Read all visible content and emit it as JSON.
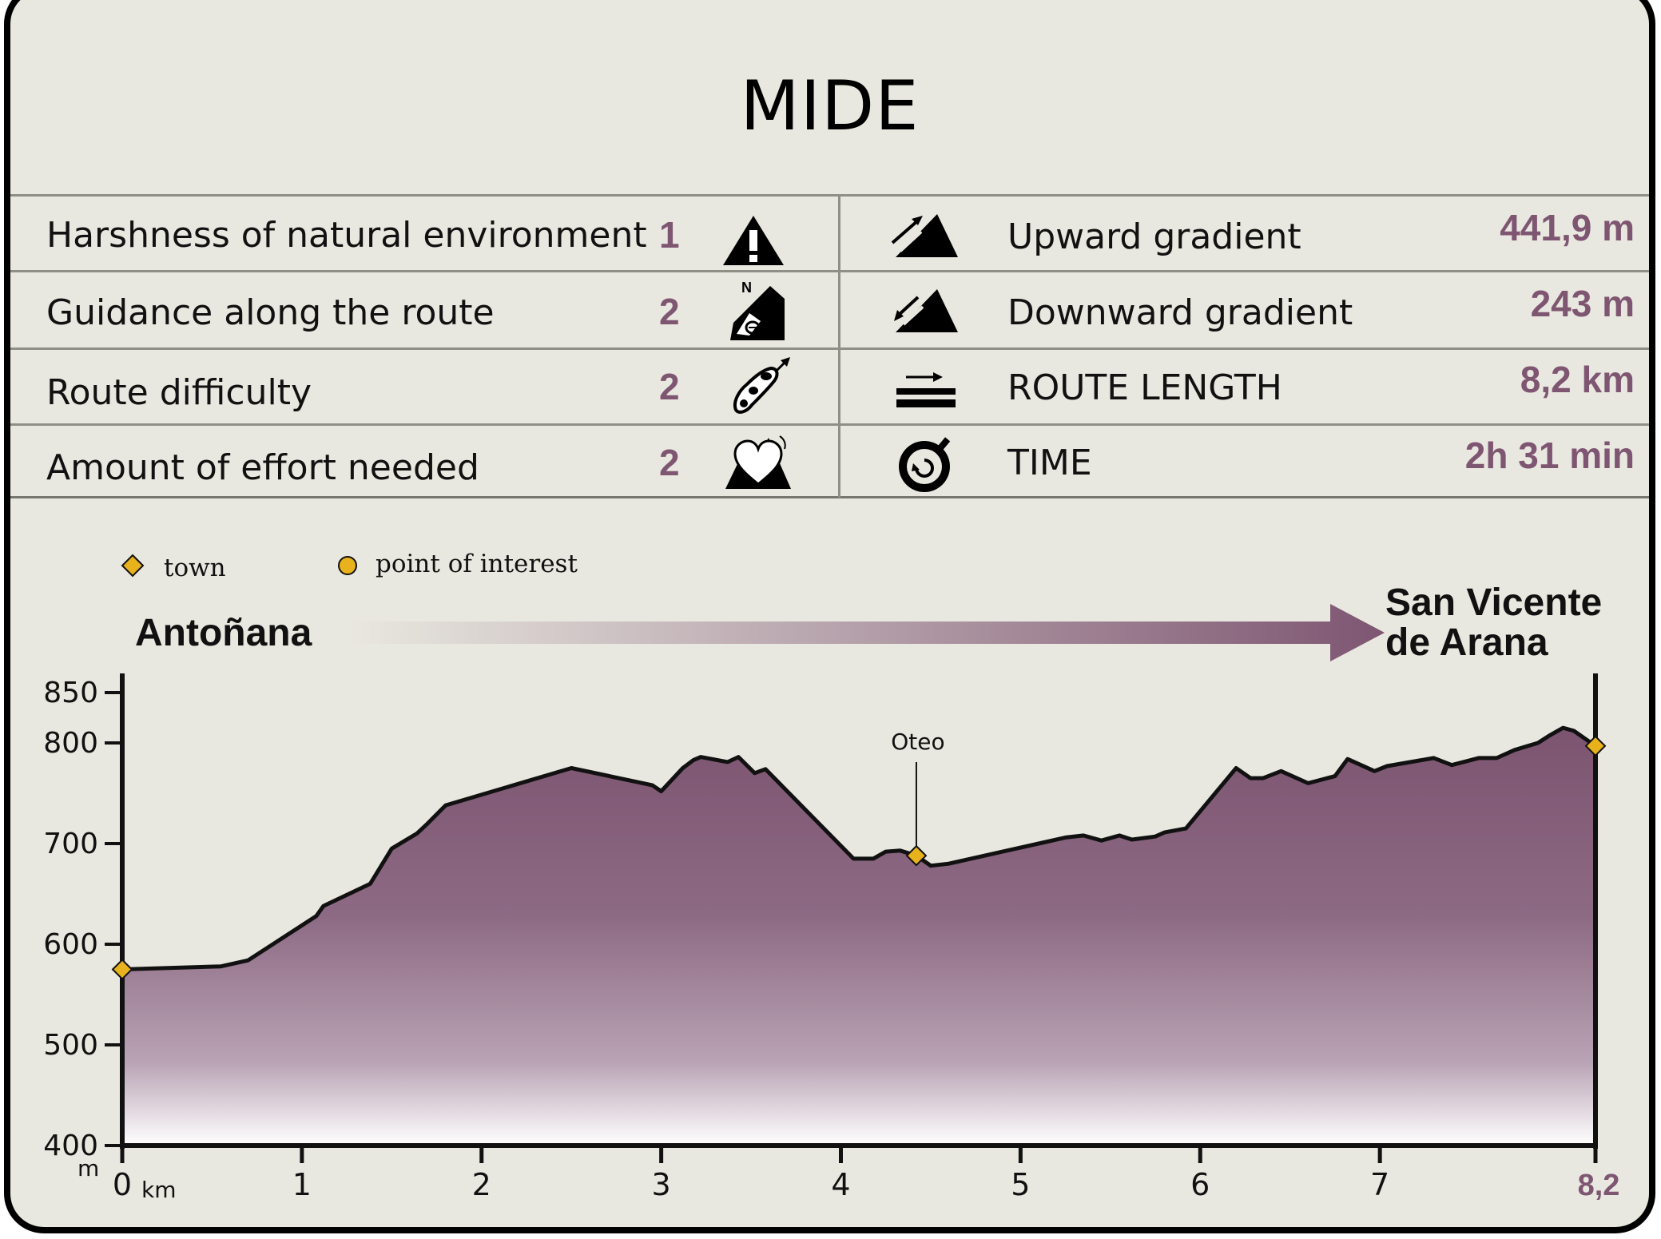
{
  "title": "MIDE",
  "mide_left": [
    {
      "label": "Harshness of natural environment",
      "value": "1",
      "icon": "warning-icon"
    },
    {
      "label": "Guidance along the route",
      "value": "2",
      "icon": "orientation-icon"
    },
    {
      "label": "Route difficulty",
      "value": "2",
      "icon": "footprint-icon"
    },
    {
      "label": "Amount of effort needed",
      "value": "2",
      "icon": "heart-mountain-icon"
    }
  ],
  "mide_right": [
    {
      "label": "Upward gradient",
      "value": "441,9 m",
      "icon": "uphill-icon"
    },
    {
      "label": "Downward gradient",
      "value": "243 m",
      "icon": "downhill-icon"
    },
    {
      "label": "ROUTE LENGTH",
      "value": "8,2 km",
      "icon": "distance-icon"
    },
    {
      "label": "TIME",
      "value": "2h 31 min",
      "icon": "stopwatch-icon"
    }
  ],
  "legend": {
    "town": "town",
    "poi": "point of interest"
  },
  "colors": {
    "accent": "#7e5672",
    "profile_top": "#7c5470",
    "profile_bottom": "#ffffff",
    "background": "#e9e8e0",
    "marker": "#e8b21c"
  },
  "chart_data": {
    "type": "area",
    "title": "",
    "start_place": "Antoñana",
    "end_place_line1": "San Vicente",
    "end_place_line2": "de Arana",
    "xlabel": "km",
    "ylabel": "m",
    "xlim": [
      0,
      8.2
    ],
    "ylim": [
      400,
      850
    ],
    "x_ticks": [
      {
        "value": 0,
        "label": "0"
      },
      {
        "value": 1,
        "label": "1"
      },
      {
        "value": 2,
        "label": "2"
      },
      {
        "value": 3,
        "label": "3"
      },
      {
        "value": 4,
        "label": "4"
      },
      {
        "value": 5,
        "label": "5"
      },
      {
        "value": 6,
        "label": "6"
      },
      {
        "value": 7,
        "label": "7"
      },
      {
        "value": 8.2,
        "label": "8,2"
      }
    ],
    "y_ticks": [
      400,
      500,
      600,
      700,
      800,
      850
    ],
    "profile": [
      [
        0,
        575
      ],
      [
        0.55,
        578
      ],
      [
        0.7,
        584
      ],
      [
        1.08,
        628
      ],
      [
        1.12,
        638
      ],
      [
        1.38,
        660
      ],
      [
        1.5,
        695
      ],
      [
        1.64,
        710
      ],
      [
        1.7,
        720
      ],
      [
        1.8,
        738
      ],
      [
        2.5,
        775
      ],
      [
        2.95,
        758
      ],
      [
        3.0,
        752
      ],
      [
        3.12,
        775
      ],
      [
        3.18,
        783
      ],
      [
        3.22,
        786
      ],
      [
        3.37,
        781
      ],
      [
        3.43,
        786
      ],
      [
        3.52,
        770
      ],
      [
        3.58,
        774
      ],
      [
        4.07,
        685
      ],
      [
        4.18,
        685
      ],
      [
        4.25,
        692
      ],
      [
        4.33,
        693
      ],
      [
        4.42,
        688
      ],
      [
        4.5,
        678
      ],
      [
        4.6,
        680
      ],
      [
        5.1,
        700
      ],
      [
        5.25,
        706
      ],
      [
        5.35,
        708
      ],
      [
        5.45,
        703
      ],
      [
        5.55,
        708
      ],
      [
        5.62,
        704
      ],
      [
        5.75,
        707
      ],
      [
        5.8,
        711
      ],
      [
        5.92,
        715
      ],
      [
        6.2,
        775
      ],
      [
        6.28,
        765
      ],
      [
        6.35,
        765
      ],
      [
        6.45,
        772
      ],
      [
        6.6,
        760
      ],
      [
        6.75,
        767
      ],
      [
        6.82,
        784
      ],
      [
        6.87,
        780
      ],
      [
        6.97,
        772
      ],
      [
        7.04,
        777
      ],
      [
        7.3,
        785
      ],
      [
        7.4,
        778
      ],
      [
        7.55,
        785
      ],
      [
        7.65,
        785
      ],
      [
        7.75,
        793
      ],
      [
        7.88,
        800
      ],
      [
        7.95,
        808
      ],
      [
        8.02,
        815
      ],
      [
        8.08,
        812
      ],
      [
        8.2,
        797
      ]
    ],
    "towns": [
      {
        "x": 0,
        "y": 575
      },
      {
        "x": 4.42,
        "y": 688,
        "label": "Oteo"
      },
      {
        "x": 8.2,
        "y": 797
      }
    ]
  }
}
